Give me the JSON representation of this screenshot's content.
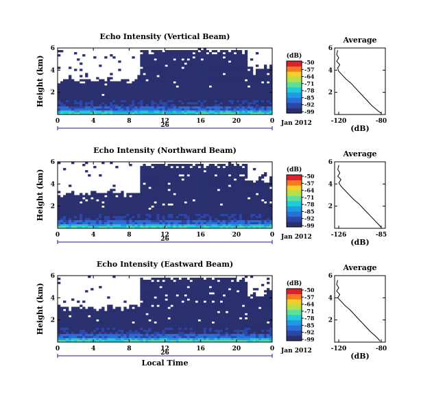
{
  "colors": {
    "colormap": [
      "#2a2f6e",
      "#2c46a8",
      "#2b6fd6",
      "#1f9be6",
      "#22c9d8",
      "#5de09c",
      "#b5e04a",
      "#f2cf2a",
      "#f47b20",
      "#d8232a"
    ],
    "background": "#ffffff"
  },
  "chart_data": [
    {
      "type": "heatmap",
      "title": "Echo Intensity (Vertical Beam)",
      "ylabel": "Height (km)",
      "x_ticks": [
        "0",
        "4",
        "8",
        "12",
        "16",
        "20",
        "0"
      ],
      "y_ticks": [
        "6",
        "4",
        "2"
      ],
      "xlim": [
        0,
        24
      ],
      "ylim": [
        0,
        6
      ],
      "date_label": "26",
      "month_label": "Jan 2012",
      "colorbar": {
        "unit": "(dB)",
        "labels": [
          "-50",
          "-57",
          "-64",
          "-71",
          "-78",
          "-85",
          "-92",
          "-99"
        ]
      },
      "average": {
        "title": "Average",
        "xlabel": "(dB)",
        "x_ticks": [
          "-120",
          "-80"
        ],
        "y_ticks": [
          "6",
          "4",
          "2"
        ],
        "xlim": [
          -125,
          -76
        ],
        "ylim": [
          0,
          6
        ],
        "profile": [
          {
            "h": 0.1,
            "db": -80
          },
          {
            "h": 0.4,
            "db": -84
          },
          {
            "h": 0.8,
            "db": -89
          },
          {
            "h": 1.2,
            "db": -93
          },
          {
            "h": 1.6,
            "db": -97
          },
          {
            "h": 2.0,
            "db": -101
          },
          {
            "h": 2.4,
            "db": -105
          },
          {
            "h": 2.8,
            "db": -109
          },
          {
            "h": 3.2,
            "db": -114
          },
          {
            "h": 3.6,
            "db": -118
          },
          {
            "h": 3.9,
            "db": -121
          },
          {
            "h": 4.2,
            "db": -122
          },
          {
            "h": 4.5,
            "db": -120
          },
          {
            "h": 4.8,
            "db": -123
          },
          {
            "h": 5.1,
            "db": -121
          },
          {
            "h": 5.4,
            "db": -123
          },
          {
            "h": 5.8,
            "db": -122
          }
        ]
      }
    },
    {
      "type": "heatmap",
      "title": "Echo Intensity (Northward Beam)",
      "ylabel": "Height (km)",
      "x_ticks": [
        "0",
        "4",
        "8",
        "12",
        "16",
        "20",
        "0"
      ],
      "y_ticks": [
        "6",
        "4",
        "2"
      ],
      "xlim": [
        0,
        24
      ],
      "ylim": [
        0,
        6
      ],
      "date_label": "26",
      "month_label": "Jan 2012",
      "colorbar": {
        "unit": "(dB)",
        "labels": [
          "-50",
          "-57",
          "-64",
          "-71",
          "-78",
          "-85",
          "-92",
          "-99"
        ]
      },
      "average": {
        "title": "Average",
        "xlabel": "(dB)",
        "x_ticks": [
          "-126",
          "-85"
        ],
        "y_ticks": [
          "6",
          "4",
          "2"
        ],
        "xlim": [
          -130,
          -82
        ],
        "ylim": [
          0,
          6
        ],
        "profile": [
          {
            "h": 0.1,
            "db": -86
          },
          {
            "h": 0.5,
            "db": -90
          },
          {
            "h": 1.0,
            "db": -95
          },
          {
            "h": 1.4,
            "db": -99
          },
          {
            "h": 1.8,
            "db": -103
          },
          {
            "h": 2.2,
            "db": -107
          },
          {
            "h": 2.6,
            "db": -112
          },
          {
            "h": 3.0,
            "db": -116
          },
          {
            "h": 3.4,
            "db": -120
          },
          {
            "h": 3.8,
            "db": -124
          },
          {
            "h": 4.1,
            "db": -126
          },
          {
            "h": 4.4,
            "db": -124
          },
          {
            "h": 4.7,
            "db": -127
          },
          {
            "h": 5.0,
            "db": -125
          },
          {
            "h": 5.3,
            "db": -127
          },
          {
            "h": 5.7,
            "db": -126
          }
        ]
      }
    },
    {
      "type": "heatmap",
      "title": "Echo Intensity (Eastward Beam)",
      "ylabel": "Height (km)",
      "x_ticks": [
        "0",
        "4",
        "8",
        "12",
        "16",
        "20",
        "0"
      ],
      "y_ticks": [
        "6",
        "4",
        "2"
      ],
      "xlim": [
        0,
        24
      ],
      "ylim": [
        0,
        6
      ],
      "date_label": "26",
      "month_label": "Jan 2012",
      "xlabel": "Local Time",
      "colorbar": {
        "unit": "(dB)",
        "labels": [
          "-50",
          "-57",
          "-64",
          "-71",
          "-78",
          "-85",
          "-92",
          "-99"
        ]
      },
      "average": {
        "title": "Average",
        "xlabel": "(dB)",
        "x_ticks": [
          "-120",
          "-80"
        ],
        "y_ticks": [
          "6",
          "4",
          "2"
        ],
        "xlim": [
          -125,
          -76
        ],
        "ylim": [
          0,
          6
        ],
        "profile": [
          {
            "h": 0.1,
            "db": -81
          },
          {
            "h": 0.5,
            "db": -85
          },
          {
            "h": 0.9,
            "db": -90
          },
          {
            "h": 1.3,
            "db": -94
          },
          {
            "h": 1.7,
            "db": -98
          },
          {
            "h": 2.1,
            "db": -102
          },
          {
            "h": 2.5,
            "db": -106
          },
          {
            "h": 2.9,
            "db": -110
          },
          {
            "h": 3.3,
            "db": -115
          },
          {
            "h": 3.7,
            "db": -119
          },
          {
            "h": 4.0,
            "db": -122
          },
          {
            "h": 4.3,
            "db": -120
          },
          {
            "h": 4.6,
            "db": -123
          },
          {
            "h": 4.9,
            "db": -121
          },
          {
            "h": 5.2,
            "db": -123
          },
          {
            "h": 5.6,
            "db": -122
          }
        ]
      }
    }
  ]
}
